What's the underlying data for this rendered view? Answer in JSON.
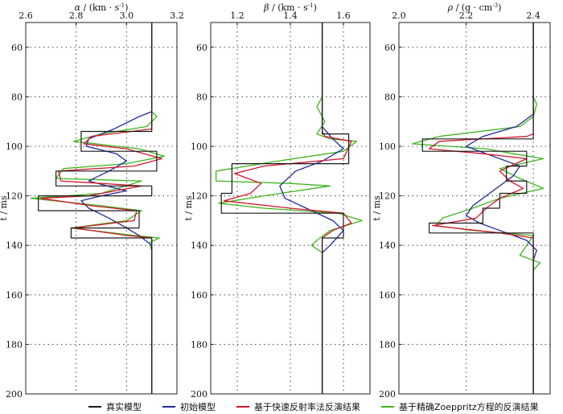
{
  "chart_data": [
    {
      "type": "line",
      "title_prefix": "α",
      "title_unit": " / (km · s",
      "title_sup": "-1",
      "title_suffix": ")",
      "xlim": [
        2.6,
        3.2
      ],
      "xticks": [
        "2.6",
        "2.8",
        "3.0",
        "3.2"
      ],
      "xtick_values": [
        2.6,
        2.8,
        3.0,
        3.2
      ],
      "ylim": [
        50,
        200
      ],
      "yticks": [
        "60",
        "80",
        "100",
        "120",
        "140",
        "160",
        "180",
        "200"
      ],
      "ylabel": "t / ms",
      "series": [
        {
          "name": "真实模型",
          "points": [
            [
              3.1,
              50
            ],
            [
              3.1,
              94
            ],
            [
              2.82,
              94
            ],
            [
              2.82,
              102
            ],
            [
              3.12,
              102
            ],
            [
              3.12,
              110
            ],
            [
              2.72,
              110
            ],
            [
              2.72,
              116
            ],
            [
              3.1,
              116
            ],
            [
              3.1,
              120
            ],
            [
              2.65,
              120
            ],
            [
              2.65,
              126
            ],
            [
              3.05,
              126
            ],
            [
              3.05,
              133
            ],
            [
              2.78,
              133
            ],
            [
              2.78,
              137
            ],
            [
              3.1,
              137
            ],
            [
              3.1,
              200
            ]
          ]
        },
        {
          "name": "初始模型",
          "points": [
            [
              3.1,
              50
            ],
            [
              3.1,
              86
            ],
            [
              3.05,
              88
            ],
            [
              2.95,
              93
            ],
            [
              2.85,
              97
            ],
            [
              2.84,
              100
            ],
            [
              2.96,
              103
            ],
            [
              3.0,
              106
            ],
            [
              2.93,
              110
            ],
            [
              2.85,
              114
            ],
            [
              2.96,
              117
            ],
            [
              3.0,
              118
            ],
            [
              2.9,
              120
            ],
            [
              2.82,
              122
            ],
            [
              2.85,
              125
            ],
            [
              2.93,
              129
            ],
            [
              3.0,
              133
            ],
            [
              3.05,
              136
            ],
            [
              3.1,
              140
            ],
            [
              3.1,
              200
            ]
          ]
        },
        {
          "name": "基于快速反射率法反演结果",
          "points": [
            [
              3.1,
              50
            ],
            [
              3.1,
              93
            ],
            [
              2.86,
              96
            ],
            [
              2.83,
              99
            ],
            [
              3.0,
              101
            ],
            [
              3.14,
              105
            ],
            [
              3.03,
              108
            ],
            [
              2.73,
              110
            ],
            [
              2.74,
              114
            ],
            [
              3.06,
              116
            ],
            [
              2.85,
              120
            ],
            [
              2.66,
              121
            ],
            [
              2.86,
              124
            ],
            [
              3.04,
              126
            ],
            [
              3.03,
              130
            ],
            [
              2.79,
              133
            ],
            [
              3.0,
              136
            ],
            [
              3.1,
              137
            ],
            [
              3.1,
              200
            ]
          ]
        },
        {
          "name": "基于精确Zoeppritz方程的反演结果",
          "points": [
            [
              3.1,
              50
            ],
            [
              3.1,
              86
            ],
            [
              3.12,
              88
            ],
            [
              3.08,
              92
            ],
            [
              2.9,
              95
            ],
            [
              2.79,
              98
            ],
            [
              3.05,
              101
            ],
            [
              3.15,
              104
            ],
            [
              3.0,
              107
            ],
            [
              2.75,
              109
            ],
            [
              2.72,
              113
            ],
            [
              3.06,
              114
            ],
            [
              2.9,
              119
            ],
            [
              2.62,
              121
            ],
            [
              2.9,
              124
            ],
            [
              3.06,
              126
            ],
            [
              3.0,
              130
            ],
            [
              2.78,
              133
            ],
            [
              3.03,
              136
            ],
            [
              3.13,
              137
            ],
            [
              3.09,
              139
            ],
            [
              3.1,
              142
            ],
            [
              3.1,
              200
            ]
          ]
        }
      ]
    },
    {
      "type": "line",
      "title_prefix": "β",
      "title_unit": " / (km · s",
      "title_sup": "-1",
      "title_suffix": ")",
      "xlim": [
        1.1,
        1.7
      ],
      "xticks": [
        "1.2",
        "1.4",
        "1.6"
      ],
      "xtick_values": [
        1.2,
        1.4,
        1.6
      ],
      "ylim": [
        50,
        200
      ],
      "yticks": [
        "60",
        "80",
        "100",
        "120",
        "140",
        "160",
        "180",
        "200"
      ],
      "ylabel": "t / ms",
      "series": [
        {
          "name": "真实模型",
          "points": [
            [
              1.52,
              50
            ],
            [
              1.52,
              95
            ],
            [
              1.62,
              95
            ],
            [
              1.62,
              107
            ],
            [
              1.18,
              107
            ],
            [
              1.18,
              119
            ],
            [
              1.14,
              119
            ],
            [
              1.14,
              127
            ],
            [
              1.6,
              127
            ],
            [
              1.6,
              137
            ],
            [
              1.52,
              137
            ],
            [
              1.52,
              200
            ]
          ]
        },
        {
          "name": "初始模型",
          "points": [
            [
              1.52,
              50
            ],
            [
              1.52,
              92
            ],
            [
              1.56,
              97
            ],
            [
              1.6,
              101
            ],
            [
              1.52,
              106
            ],
            [
              1.42,
              110
            ],
            [
              1.36,
              116
            ],
            [
              1.38,
              121
            ],
            [
              1.46,
              125
            ],
            [
              1.56,
              130
            ],
            [
              1.6,
              134
            ],
            [
              1.55,
              140
            ],
            [
              1.52,
              143
            ],
            [
              1.52,
              200
            ]
          ]
        },
        {
          "name": "基于快速反射率法反演结果",
          "points": [
            [
              1.52,
              50
            ],
            [
              1.52,
              94
            ],
            [
              1.53,
              96
            ],
            [
              1.63,
              98
            ],
            [
              1.6,
              105
            ],
            [
              1.3,
              108
            ],
            [
              1.19,
              111
            ],
            [
              1.29,
              115
            ],
            [
              1.25,
              119
            ],
            [
              1.15,
              122
            ],
            [
              1.4,
              125
            ],
            [
              1.6,
              127
            ],
            [
              1.63,
              131
            ],
            [
              1.56,
              134
            ],
            [
              1.52,
              137
            ],
            [
              1.52,
              200
            ]
          ]
        },
        {
          "name": "基于精确Zoeppritz方程的反演结果",
          "points": [
            [
              1.52,
              50
            ],
            [
              1.52,
              80
            ],
            [
              1.5,
              84
            ],
            [
              1.53,
              90
            ],
            [
              1.5,
              95
            ],
            [
              1.55,
              97
            ],
            [
              1.65,
              98
            ],
            [
              1.6,
              102
            ],
            [
              1.35,
              106
            ],
            [
              1.12,
              110
            ],
            [
              1.12,
              114
            ],
            [
              1.4,
              115
            ],
            [
              1.55,
              116
            ],
            [
              1.3,
              120
            ],
            [
              1.13,
              123
            ],
            [
              1.3,
              125
            ],
            [
              1.58,
              127
            ],
            [
              1.67,
              130
            ],
            [
              1.55,
              134
            ],
            [
              1.5,
              138
            ],
            [
              1.48,
              140
            ],
            [
              1.52,
              143
            ],
            [
              1.52,
              200
            ]
          ]
        }
      ]
    },
    {
      "type": "line",
      "title_prefix": "ρ",
      "title_unit": " / (g · cm",
      "title_sup": "-3",
      "title_suffix": ")",
      "xlim": [
        2.0,
        2.45
      ],
      "xticks": [
        "2.0",
        "2.2",
        "2.4"
      ],
      "xtick_values": [
        2.0,
        2.2,
        2.4
      ],
      "ylim": [
        50,
        200
      ],
      "yticks": [
        "60",
        "80",
        "100",
        "120",
        "140",
        "160",
        "180",
        "200"
      ],
      "ylabel": "t / ms",
      "series": [
        {
          "name": "真实模型",
          "points": [
            [
              2.4,
              50
            ],
            [
              2.4,
              97
            ],
            [
              2.07,
              97
            ],
            [
              2.07,
              102
            ],
            [
              2.38,
              102
            ],
            [
              2.38,
              108
            ],
            [
              2.32,
              108
            ],
            [
              2.32,
              114
            ],
            [
              2.38,
              114
            ],
            [
              2.38,
              119
            ],
            [
              2.3,
              119
            ],
            [
              2.3,
              125
            ],
            [
              2.25,
              125
            ],
            [
              2.25,
              131
            ],
            [
              2.09,
              131
            ],
            [
              2.09,
              135
            ],
            [
              2.4,
              135
            ],
            [
              2.4,
              200
            ]
          ]
        },
        {
          "name": "初始模型",
          "points": [
            [
              2.4,
              50
            ],
            [
              2.4,
              87
            ],
            [
              2.35,
              92
            ],
            [
              2.25,
              96
            ],
            [
              2.2,
              100
            ],
            [
              2.28,
              104
            ],
            [
              2.36,
              108
            ],
            [
              2.34,
              112
            ],
            [
              2.28,
              118
            ],
            [
              2.22,
              124
            ],
            [
              2.2,
              128
            ],
            [
              2.24,
              131
            ],
            [
              2.3,
              134
            ],
            [
              2.38,
              138
            ],
            [
              2.41,
              142
            ],
            [
              2.4,
              146
            ],
            [
              2.4,
              200
            ]
          ]
        },
        {
          "name": "基于快速反射率法反演结果",
          "points": [
            [
              2.4,
              50
            ],
            [
              2.4,
              95
            ],
            [
              2.38,
              96
            ],
            [
              2.12,
              98
            ],
            [
              2.09,
              101
            ],
            [
              2.25,
              103
            ],
            [
              2.38,
              105
            ],
            [
              2.3,
              110
            ],
            [
              2.33,
              114
            ],
            [
              2.37,
              117
            ],
            [
              2.3,
              121
            ],
            [
              2.26,
              125
            ],
            [
              2.23,
              129
            ],
            [
              2.1,
              132
            ],
            [
              2.3,
              135
            ],
            [
              2.4,
              137
            ],
            [
              2.4,
              200
            ]
          ]
        },
        {
          "name": "基于精确Zoeppritz方程的反演结果",
          "points": [
            [
              2.4,
              50
            ],
            [
              2.4,
              80
            ],
            [
              2.41,
              83
            ],
            [
              2.4,
              88
            ],
            [
              2.36,
              92
            ],
            [
              2.12,
              96
            ],
            [
              2.04,
              99
            ],
            [
              2.26,
              101
            ],
            [
              2.34,
              103
            ],
            [
              2.43,
              105
            ],
            [
              2.3,
              109
            ],
            [
              2.36,
              113
            ],
            [
              2.43,
              117
            ],
            [
              2.3,
              121
            ],
            [
              2.22,
              125
            ],
            [
              2.13,
              129
            ],
            [
              2.11,
              132
            ],
            [
              2.22,
              134
            ],
            [
              2.4,
              136
            ],
            [
              2.38,
              140
            ],
            [
              2.36,
              144
            ],
            [
              2.42,
              147
            ],
            [
              2.4,
              150
            ],
            [
              2.4,
              200
            ]
          ]
        }
      ]
    }
  ],
  "colors": {
    "真实模型": "#1a1a1a",
    "初始模型": "#1f2a9c",
    "基于快速反射率法反演结果": "#d4162b",
    "基于精确Zoeppritz方程的反演结果": "#3fb51f"
  },
  "legend": [
    {
      "label": "真实模型",
      "color": "#1a1a1a"
    },
    {
      "label": "初始模型",
      "color": "#1f2a9c"
    },
    {
      "label": "基于快速反射率法反演结果",
      "color": "#d4162b"
    },
    {
      "label": "基于精确Zoeppritz方程的反演结果",
      "color": "#3fb51f"
    }
  ]
}
